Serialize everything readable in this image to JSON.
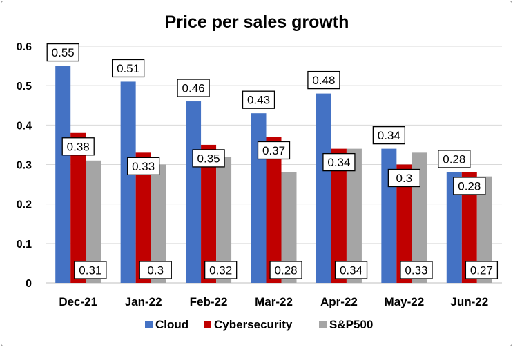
{
  "chart_data": {
    "type": "bar",
    "title": "Price per sales growth",
    "xlabel": "",
    "ylabel": "",
    "ylim": [
      0,
      0.6
    ],
    "yticks": [
      "0",
      "0.1",
      "0.2",
      "0.3",
      "0.4",
      "0.5",
      "0.6"
    ],
    "grid": true,
    "legend_position": "bottom",
    "categories": [
      "Dec-21",
      "Jan-22",
      "Feb-22",
      "Mar-22",
      "Apr-22",
      "May-22",
      "Jun-22"
    ],
    "series": [
      {
        "name": "Cloud",
        "color": "#4472c4",
        "values": [
          0.55,
          0.51,
          0.46,
          0.43,
          0.48,
          0.34,
          0.28
        ],
        "labels": [
          "0.55",
          "0.51",
          "0.46",
          "0.43",
          "0.48",
          "0.34",
          "0.28"
        ]
      },
      {
        "name": "Cybersecurity",
        "color": "#c00000",
        "values": [
          0.38,
          0.33,
          0.35,
          0.37,
          0.34,
          0.3,
          0.28
        ],
        "labels": [
          "0.38",
          "0.33",
          "0.35",
          "0.37",
          "0.34",
          "0.3",
          "0.28"
        ]
      },
      {
        "name": "S&P500",
        "color": "#a5a5a5",
        "values": [
          0.31,
          0.3,
          0.32,
          0.28,
          0.34,
          0.33,
          0.27
        ],
        "labels": [
          "0.31",
          "0.3",
          "0.32",
          "0.28",
          "0.34",
          "0.33",
          "0.27"
        ]
      }
    ]
  }
}
